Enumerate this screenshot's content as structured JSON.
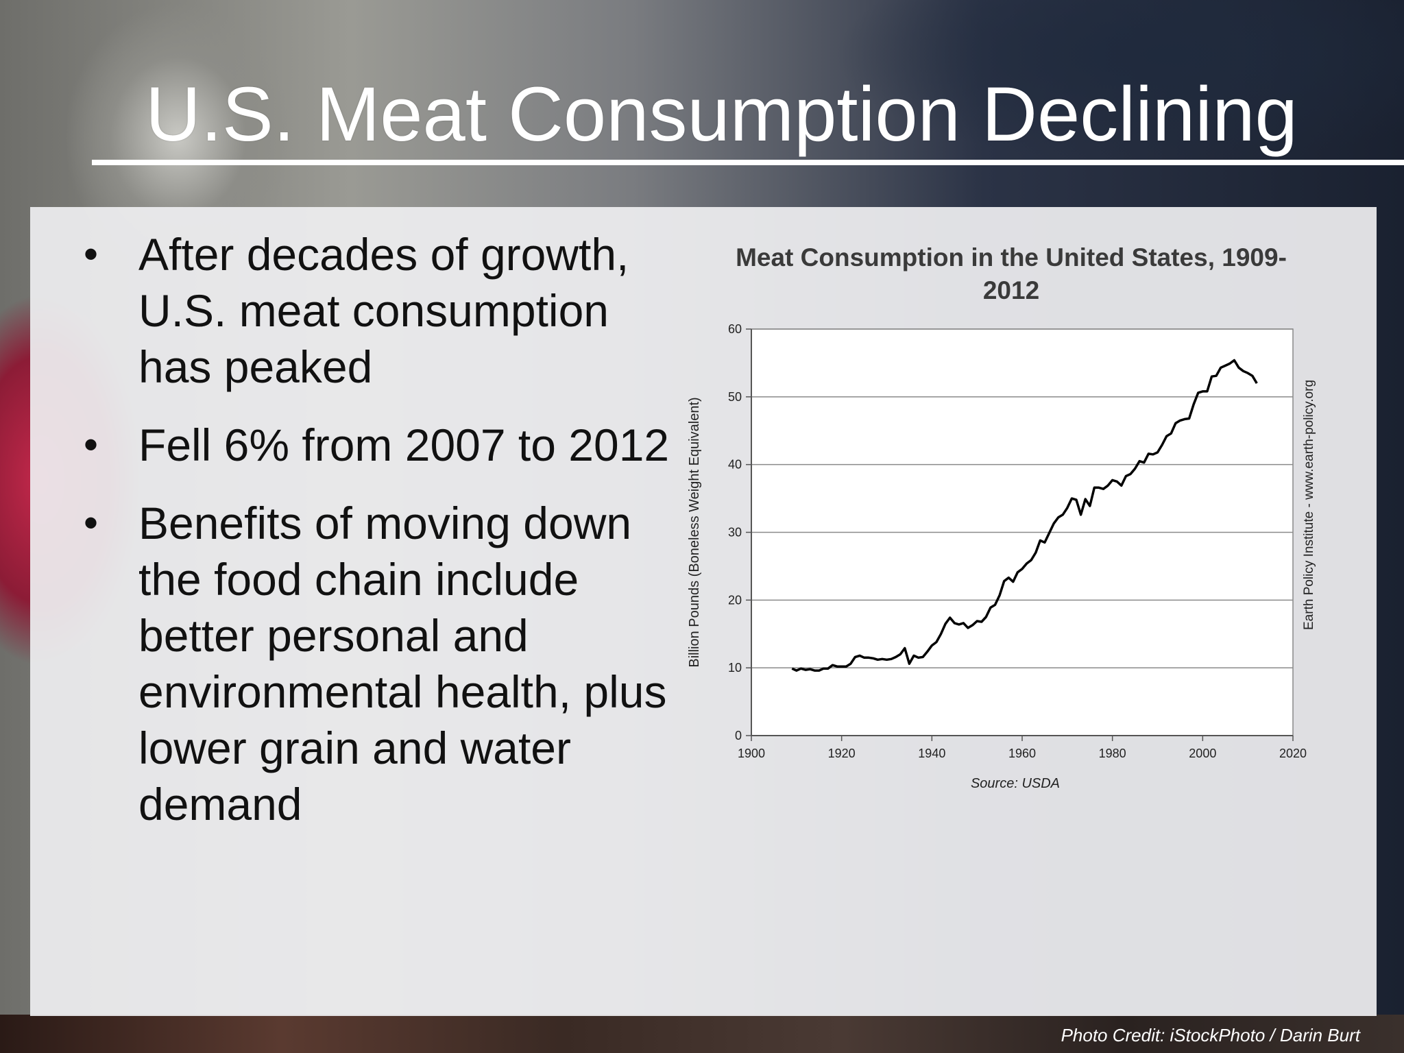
{
  "slide": {
    "title": "U.S. Meat Consumption Declining",
    "bullets": [
      "After decades of growth, U.S. meat consumption has peaked",
      "Fell 6% from 2007 to 2012",
      "Benefits of moving down the food chain include better personal and environmental health, plus lower grain and water demand"
    ],
    "photo_credit": "Photo Credit: iStockPhoto / Darin Burt"
  },
  "chart_data": {
    "type": "line",
    "title": "Meat Consumption in the United States, 1909-2012",
    "ylabel": "Billion Pounds (Boneless Weight Equivalent)",
    "xlabel": "",
    "source": "Source: USDA",
    "side_note": "Earth Policy Institute - www.earth-policy.org",
    "xlim": [
      1900,
      2020
    ],
    "ylim": [
      0,
      60
    ],
    "x_ticks": [
      1900,
      1920,
      1940,
      1960,
      1980,
      2000,
      2020
    ],
    "y_ticks": [
      0,
      10,
      20,
      30,
      40,
      50,
      60
    ],
    "grid": "horizontal",
    "line_color": "#000000",
    "series": [
      {
        "x": [
          1909,
          1910,
          1911,
          1912,
          1913,
          1914,
          1915,
          1916,
          1917,
          1918,
          1919,
          1920,
          1921,
          1922,
          1923,
          1924,
          1925,
          1926,
          1927,
          1928,
          1929,
          1930,
          1931,
          1932,
          1933,
          1934,
          1935,
          1936,
          1937,
          1938,
          1939,
          1940,
          1941,
          1942,
          1943,
          1944,
          1945,
          1946,
          1947,
          1948,
          1949,
          1950,
          1951,
          1952,
          1953,
          1954,
          1955,
          1956,
          1957,
          1958,
          1959,
          1960,
          1961,
          1962,
          1963,
          1964,
          1965,
          1966,
          1967,
          1968,
          1969,
          1970,
          1971,
          1972,
          1973,
          1974,
          1975,
          1976,
          1977,
          1978,
          1979,
          1980,
          1981,
          1982,
          1983,
          1984,
          1985,
          1986,
          1987,
          1988,
          1989,
          1990,
          1991,
          1992,
          1993,
          1994,
          1995,
          1996,
          1997,
          1998,
          1999,
          2000,
          2001,
          2002,
          2003,
          2004,
          2005,
          2006,
          2007,
          2008,
          2009,
          2010,
          2011,
          2012
        ],
        "values": [
          9.9,
          9.6,
          9.9,
          9.7,
          9.8,
          9.6,
          9.6,
          9.9,
          9.9,
          10.4,
          10.2,
          10.2,
          10.2,
          10.6,
          11.6,
          11.8,
          11.5,
          11.5,
          11.4,
          11.2,
          11.3,
          11.2,
          11.3,
          11.6,
          12.0,
          12.9,
          10.6,
          11.8,
          11.5,
          11.6,
          12.4,
          13.3,
          13.8,
          15.0,
          16.5,
          17.4,
          16.6,
          16.4,
          16.6,
          15.9,
          16.3,
          16.9,
          16.8,
          17.5,
          18.9,
          19.3,
          20.7,
          22.8,
          23.3,
          22.7,
          24.1,
          24.6,
          25.4,
          25.9,
          27.0,
          28.8,
          28.5,
          29.9,
          31.3,
          32.2,
          32.6,
          33.6,
          35.0,
          34.8,
          32.6,
          34.9,
          33.9,
          36.6,
          36.6,
          36.4,
          36.9,
          37.7,
          37.5,
          36.9,
          38.3,
          38.6,
          39.4,
          40.5,
          40.3,
          41.6,
          41.5,
          41.8,
          42.9,
          44.2,
          44.6,
          46.1,
          46.5,
          46.7,
          46.8,
          48.9,
          50.6,
          50.8,
          50.8,
          53.0,
          53.1,
          54.3,
          54.6,
          54.9,
          55.4,
          54.3,
          53.8,
          53.5,
          53.1,
          52.0
        ]
      }
    ]
  }
}
